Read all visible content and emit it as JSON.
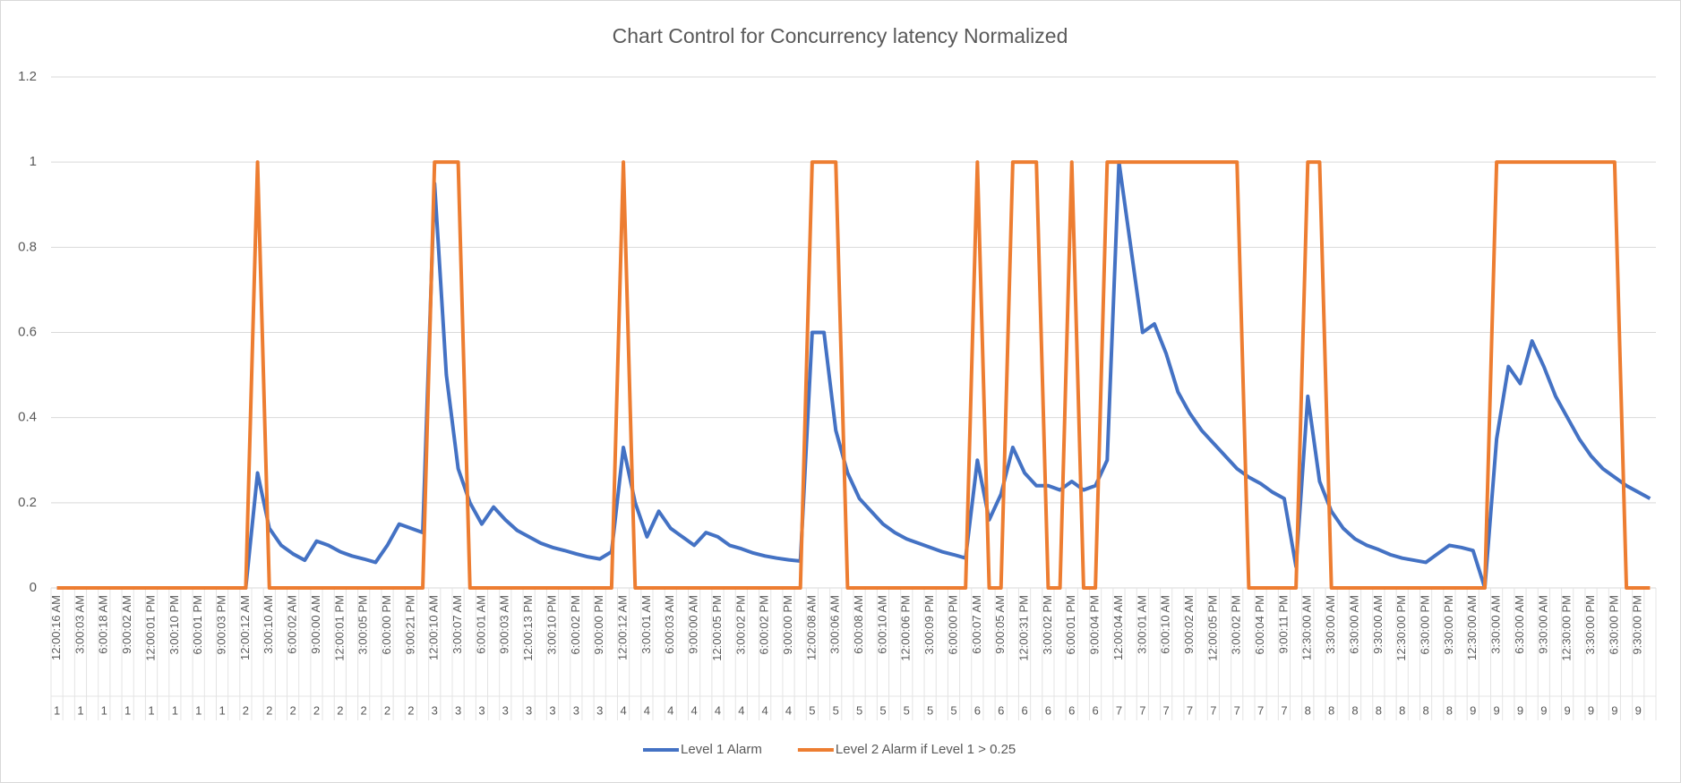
{
  "chart_data": {
    "type": "line",
    "title": "Chart Control for Concurrency latency Normalized",
    "categories": [
      "12:00:16 AM",
      null,
      "3:00:03 AM",
      null,
      "6:00:18 AM",
      null,
      "9:00:02 AM",
      null,
      "12:00:01 PM",
      null,
      "3:00:10 PM",
      null,
      "6:00:01 PM",
      null,
      "9:00:03 PM",
      null,
      "12:00:12 AM",
      null,
      "3:00:10 AM",
      null,
      "6:00:02 AM",
      null,
      "9:00:00 AM",
      null,
      "12:00:01 PM",
      null,
      "3:00:05 PM",
      null,
      "6:00:00 PM",
      null,
      "9:00:21 PM",
      null,
      "12:00:10 AM",
      null,
      "3:00:07 AM",
      null,
      "6:00:01 AM",
      null,
      "9:00:03 AM",
      null,
      "12:00:13 PM",
      null,
      "3:00:10 PM",
      null,
      "6:00:02 PM",
      null,
      "9:00:00 PM",
      null,
      "12:00:12 AM",
      null,
      "3:00:01 AM",
      null,
      "6:00:03 AM",
      null,
      "9:00:00 AM",
      null,
      "12:00:05 PM",
      null,
      "3:00:02 PM",
      null,
      "6:00:02 PM",
      null,
      "9:00:00 PM",
      null,
      "12:00:08 AM",
      null,
      "3:00:06 AM",
      null,
      "6:00:08 AM",
      null,
      "6:00:10 AM",
      null,
      "12:00:06 PM",
      null,
      "3:00:09 PM",
      null,
      "6:00:00 PM",
      null,
      "6:00:07 AM",
      null,
      "9:00:05 AM",
      null,
      "12:00:31 PM",
      null,
      "3:00:02 PM",
      null,
      "6:00:01 PM",
      null,
      "9:00:04 PM",
      null,
      "12:00:04 AM",
      null,
      "3:00:01 AM",
      null,
      "6:00:10 AM",
      null,
      "9:00:02 AM",
      null,
      "12:00:05 PM",
      null,
      "3:00:02 PM",
      null,
      "6:00:04 PM",
      null,
      "9:00:11 PM",
      null,
      "12:30:00 AM",
      null,
      "3:30:00 AM",
      null,
      "6:30:00 AM",
      null,
      "9:30:00 AM",
      null,
      "12:30:00 PM",
      null,
      "6:30:00 PM",
      null,
      "9:30:00 PM",
      null,
      "12:30:00 AM",
      null,
      "3:30:00 AM",
      null,
      "6:30:00 AM",
      null,
      "9:30:00 AM",
      null,
      "12:30:00 PM",
      null,
      "3:30:00 PM",
      null,
      "6:30:00 PM",
      null,
      "9:30:00 PM",
      null
    ],
    "groups": [
      "1",
      null,
      "1",
      null,
      "1",
      null,
      "1",
      null,
      "1",
      null,
      "1",
      null,
      "1",
      null,
      "1",
      null,
      "2",
      null,
      "2",
      null,
      "2",
      null,
      "2",
      null,
      "2",
      null,
      "2",
      null,
      "2",
      null,
      "2",
      null,
      "3",
      null,
      "3",
      null,
      "3",
      null,
      "3",
      null,
      "3",
      null,
      "3",
      null,
      "3",
      null,
      "3",
      null,
      "4",
      null,
      "4",
      null,
      "4",
      null,
      "4",
      null,
      "4",
      null,
      "4",
      null,
      "4",
      null,
      "4",
      null,
      "5",
      null,
      "5",
      null,
      "5",
      null,
      "5",
      null,
      "5",
      null,
      "5",
      null,
      "5",
      null,
      "6",
      null,
      "6",
      null,
      "6",
      null,
      "6",
      null,
      "6",
      null,
      "6",
      null,
      "7",
      null,
      "7",
      null,
      "7",
      null,
      "7",
      null,
      "7",
      null,
      "7",
      null,
      "7",
      null,
      "7",
      null,
      "8",
      null,
      "8",
      null,
      "8",
      null,
      "8",
      null,
      "8",
      null,
      "8",
      null,
      "8",
      null,
      "9",
      null,
      "9",
      null,
      "9",
      null,
      "9",
      null,
      "9",
      null,
      "9",
      null,
      "9",
      null,
      "9",
      null
    ],
    "series": [
      {
        "name": "Level 1 Alarm",
        "color": "#4472c4",
        "values": [
          0,
          0,
          0,
          0,
          0,
          0,
          0,
          0,
          0,
          0,
          0,
          0,
          0,
          0,
          0,
          0,
          0,
          0.27,
          0.14,
          0.1,
          0.08,
          0.065,
          0.11,
          0.1,
          0.085,
          0.075,
          0.068,
          0.06,
          0.1,
          0.15,
          0.14,
          0.13,
          0.95,
          0.5,
          0.28,
          0.2,
          0.15,
          0.19,
          0.16,
          0.135,
          0.12,
          0.105,
          0.095,
          0.088,
          0.08,
          0.073,
          0.068,
          0.085,
          0.33,
          0.2,
          0.12,
          0.18,
          0.14,
          0.12,
          0.1,
          0.13,
          0.12,
          0.1,
          0.092,
          0.082,
          0.075,
          0.07,
          0.066,
          0.063,
          0.6,
          0.6,
          0.37,
          0.27,
          0.21,
          0.18,
          0.15,
          0.13,
          0.115,
          0.105,
          0.095,
          0.085,
          0.078,
          0.07,
          0.3,
          0.16,
          0.22,
          0.33,
          0.27,
          0.24,
          0.24,
          0.23,
          0.25,
          0.23,
          0.24,
          0.3,
          1,
          0.8,
          0.6,
          0.62,
          0.55,
          0.46,
          0.41,
          0.37,
          0.34,
          0.31,
          0.28,
          0.26,
          0.245,
          0.225,
          0.21,
          0.05,
          0.45,
          0.25,
          0.18,
          0.14,
          0.115,
          0.1,
          0.09,
          0.078,
          0.07,
          0.065,
          0.06,
          0.08,
          0.1,
          0.095,
          0.088,
          0,
          0.35,
          0.52,
          0.48,
          0.58,
          0.52,
          0.45,
          0.4,
          0.35,
          0.31,
          0.28,
          0.26,
          0.24,
          0.225,
          0.21
        ]
      },
      {
        "name": "Level 2 Alarm if Level 1 > 0.25",
        "color": "#ed7d31",
        "values": [
          0,
          0,
          0,
          0,
          0,
          0,
          0,
          0,
          0,
          0,
          0,
          0,
          0,
          0,
          0,
          0,
          0,
          1,
          0,
          0,
          0,
          0,
          0,
          0,
          0,
          0,
          0,
          0,
          0,
          0,
          0,
          0,
          1,
          1,
          1,
          0,
          0,
          0,
          0,
          0,
          0,
          0,
          0,
          0,
          0,
          0,
          0,
          0,
          1,
          0,
          0,
          0,
          0,
          0,
          0,
          0,
          0,
          0,
          0,
          0,
          0,
          0,
          0,
          0,
          1,
          1,
          1,
          0,
          0,
          0,
          0,
          0,
          0,
          0,
          0,
          0,
          0,
          0,
          1,
          0,
          0,
          1,
          1,
          1,
          0,
          0,
          1,
          0,
          0,
          1,
          1,
          1,
          1,
          1,
          1,
          1,
          1,
          1,
          1,
          1,
          1,
          0,
          0,
          0,
          0,
          0,
          1,
          1,
          0,
          0,
          0,
          0,
          0,
          0,
          0,
          0,
          0,
          0,
          0,
          0,
          0,
          0,
          1,
          1,
          1,
          1,
          1,
          1,
          1,
          1,
          1,
          1,
          1,
          0,
          0,
          0
        ]
      }
    ],
    "ylim": [
      0,
      1.2
    ],
    "yticks": [
      0,
      0.2,
      0.4,
      0.6,
      0.8,
      1,
      1.2
    ],
    "grid": true,
    "legend": "bottom"
  }
}
